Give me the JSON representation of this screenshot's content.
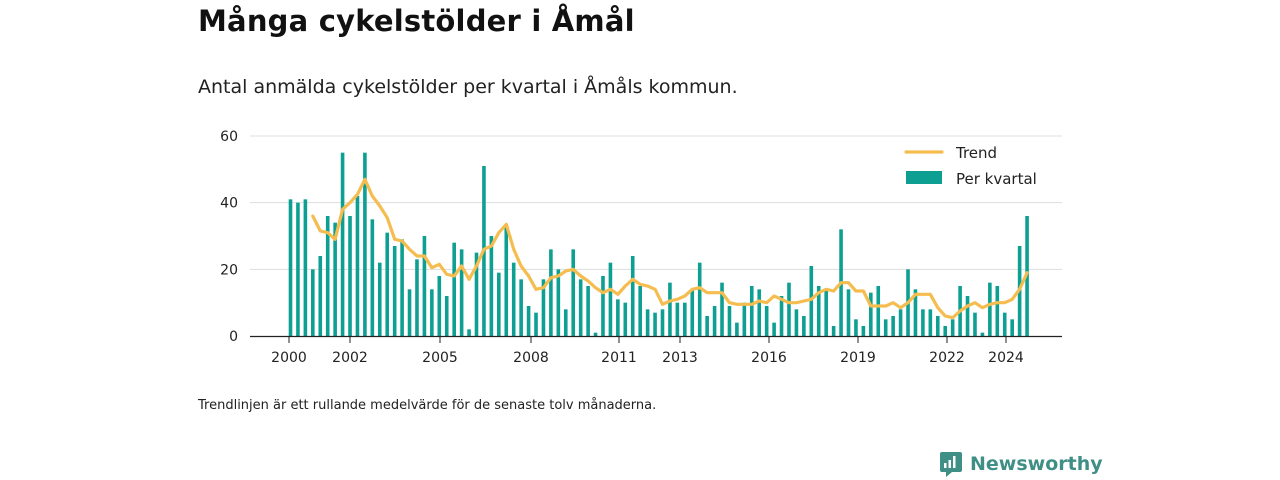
{
  "header": {
    "title": "Många cykelstölder i Åmål",
    "subtitle": "Antal anmälda cykelstölder per kvartal i Åmåls kommun."
  },
  "footnote": "Trendlinjen är ett rullande medelvärde för de senaste tolv månaderna.",
  "brand": {
    "name": "Newsworthy",
    "icon": "newsworthy-logo-icon",
    "color": "#3f8f86"
  },
  "colors": {
    "bars": "#0e9f93",
    "trend": "#f5bd4f",
    "grid": "#dddddd",
    "axis": "#222222"
  },
  "chart_data": {
    "type": "bar",
    "x_ticks": [
      "2000",
      "2002",
      "2005",
      "2008",
      "2011",
      "2013",
      "2016",
      "2019",
      "2022",
      "2024"
    ],
    "y_ticks": [
      "0",
      "20",
      "40",
      "60"
    ],
    "ylim": [
      0,
      60
    ],
    "grid": true,
    "legend_position": "top-right",
    "legend": [
      {
        "label": "Trend",
        "kind": "line"
      },
      {
        "label": "Per kvartal",
        "kind": "bar"
      }
    ],
    "series": [
      {
        "name": "Per kvartal",
        "kind": "bar",
        "values": [
          41,
          40,
          41,
          20,
          24,
          36,
          34,
          55,
          36,
          42,
          55,
          35,
          22,
          31,
          27,
          29,
          14,
          23,
          30,
          14,
          18,
          12,
          28,
          26,
          2,
          25,
          51,
          30,
          19,
          33,
          22,
          17,
          9,
          7,
          17,
          26,
          20,
          8,
          26,
          17,
          15,
          1,
          18,
          22,
          11,
          10,
          24,
          15,
          8,
          7,
          8,
          16,
          10,
          10,
          14,
          22,
          6,
          9,
          16,
          9,
          4,
          10,
          15,
          14,
          9,
          4,
          12,
          16,
          8,
          6,
          21,
          15,
          14,
          3,
          32,
          14,
          5,
          3,
          13,
          15,
          5,
          6,
          8,
          20,
          14,
          8,
          8,
          6,
          3,
          5,
          15,
          12,
          7,
          1,
          16,
          15,
          7,
          5,
          27,
          36
        ]
      },
      {
        "name": "Trend",
        "kind": "line",
        "values": [
          null,
          null,
          null,
          36,
          31.5,
          31,
          29,
          38,
          40,
          42.5,
          47,
          42,
          39,
          35.5,
          29,
          28.5,
          26,
          24,
          24,
          20.5,
          21.5,
          18.5,
          18,
          21,
          17,
          21,
          26,
          27,
          31,
          33.5,
          26,
          21,
          18,
          14,
          14.5,
          17.5,
          18,
          19.5,
          20,
          18,
          16.5,
          14.5,
          13,
          14,
          12.5,
          15,
          17,
          15.5,
          15,
          14,
          9.5,
          10.5,
          11,
          12,
          14,
          14.5,
          13,
          13,
          13,
          10,
          9.5,
          9.5,
          9.5,
          10.5,
          10,
          12,
          11,
          10,
          10,
          10.5,
          11,
          13,
          14,
          13.5,
          16,
          16,
          13.5,
          13.5,
          9,
          9,
          9,
          10,
          8.5,
          10,
          12.5,
          12.5,
          12.5,
          8.5,
          6,
          5.5,
          7.5,
          9,
          10,
          8.5,
          9.5,
          10,
          10,
          11,
          14,
          19
        ]
      }
    ]
  }
}
